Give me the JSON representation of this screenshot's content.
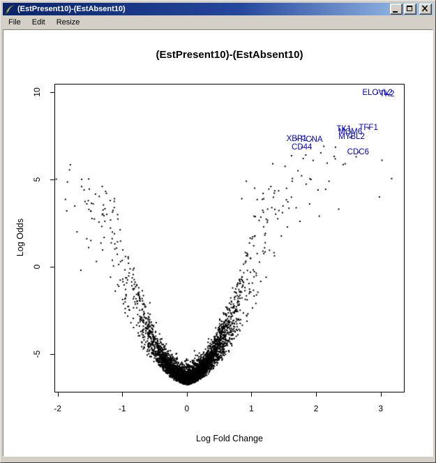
{
  "window": {
    "title": "(EstPresent10)-(EstAbsent10)",
    "icon": "r-graphics-quill"
  },
  "menu": {
    "items": [
      {
        "label": "File"
      },
      {
        "label": "Edit"
      },
      {
        "label": "Resize"
      }
    ]
  },
  "chart_data": {
    "type": "scatter",
    "title": "(EstPresent10)-(EstAbsent10)",
    "xlabel": "Log Fold Change",
    "ylabel": "Log Odds",
    "xlim": [
      -2.05,
      3.37
    ],
    "ylim": [
      -7.2,
      10.48
    ],
    "xticks": [
      -2,
      -1,
      0,
      1,
      2,
      3
    ],
    "xtick_labels": [
      "-2",
      "-1",
      "0",
      "1",
      "2",
      "3"
    ],
    "yticks": [
      -5,
      0,
      5,
      10
    ],
    "ytick_labels": [
      "-5",
      "0",
      "5",
      "10"
    ],
    "grid": false,
    "point_color": "#000000",
    "label_color": "#0000cc",
    "description": "Volcano plot of log odds of differential expression versus log fold change; dense funnel of unlabelled probes with top-ranked genes labelled in blue.",
    "labeled_genes": [
      {
        "name": "ELOVL2",
        "x": 2.95,
        "y": 9.95
      },
      {
        "name": "TK2",
        "x": 3.1,
        "y": 9.88
      },
      {
        "name": "TFF1",
        "x": 2.81,
        "y": 7.95
      },
      {
        "name": "TK1",
        "x": 2.43,
        "y": 7.9
      },
      {
        "name": "MCM6",
        "x": 2.53,
        "y": 7.72
      },
      {
        "name": "MYBL2",
        "x": 2.55,
        "y": 7.45
      },
      {
        "name": "PCNA",
        "x": 1.93,
        "y": 7.3
      },
      {
        "name": "XBP1",
        "x": 1.7,
        "y": 7.32
      },
      {
        "name": "CD44",
        "x": 1.78,
        "y": 6.85
      },
      {
        "name": "CDC6",
        "x": 2.65,
        "y": 6.55
      }
    ],
    "outlier_points": [
      [
        -1.86,
        3.2
      ],
      [
        -1.59,
        4.4
      ],
      [
        -1.31,
        4.6
      ],
      [
        -1.45,
        3.6
      ],
      [
        -1.24,
        3.0
      ],
      [
        -1.7,
        2.0
      ],
      [
        -1.52,
        1.1
      ],
      [
        -1.64,
        -0.2
      ],
      [
        -1.4,
        0.3
      ],
      [
        -1.12,
        3.9
      ],
      [
        0.92,
        4.9
      ],
      [
        1.05,
        4.5
      ],
      [
        1.18,
        4.2
      ],
      [
        1.3,
        4.6
      ],
      [
        1.42,
        4.35
      ],
      [
        1.52,
        5.75
      ],
      [
        1.63,
        4.9
      ],
      [
        1.72,
        5.5
      ],
      [
        1.8,
        6.2
      ],
      [
        1.92,
        5.0
      ],
      [
        2.03,
        4.4
      ],
      [
        2.12,
        6.9
      ],
      [
        2.3,
        6.85
      ],
      [
        2.45,
        5.9
      ],
      [
        2.62,
        6.3
      ],
      [
        2.98,
        4.0
      ],
      [
        3.02,
        6.1
      ],
      [
        3.17,
        5.05
      ],
      [
        1.62,
        6.36
      ],
      [
        1.84,
        6.4
      ],
      [
        2.28,
        6.32
      ],
      [
        1.33,
        5.9
      ],
      [
        1.25,
        3.3
      ],
      [
        1.48,
        3.1
      ],
      [
        0.85,
        3.9
      ],
      [
        2.2,
        4.9
      ],
      [
        1.9,
        3.6
      ],
      [
        2.05,
        2.9
      ],
      [
        1.75,
        2.6
      ],
      [
        2.35,
        3.3
      ]
    ],
    "generator": {
      "seed": 42,
      "n": 4200,
      "sigma_bands": [
        [
          0.7,
          0.3
        ],
        [
          0.93,
          0.52
        ],
        [
          1.0,
          0.85
        ]
      ],
      "right_fraction": 0.57,
      "coef": 7.6,
      "power": 1.7,
      "u_min": 0.5,
      "u_span": 0.65,
      "base": -6.75,
      "lift_sd": 0.45,
      "env_slope": 2.6,
      "env_intercept": 1.2,
      "env_diffuse": 2.5,
      "floor": -6.8,
      "point_size": 2
    }
  }
}
